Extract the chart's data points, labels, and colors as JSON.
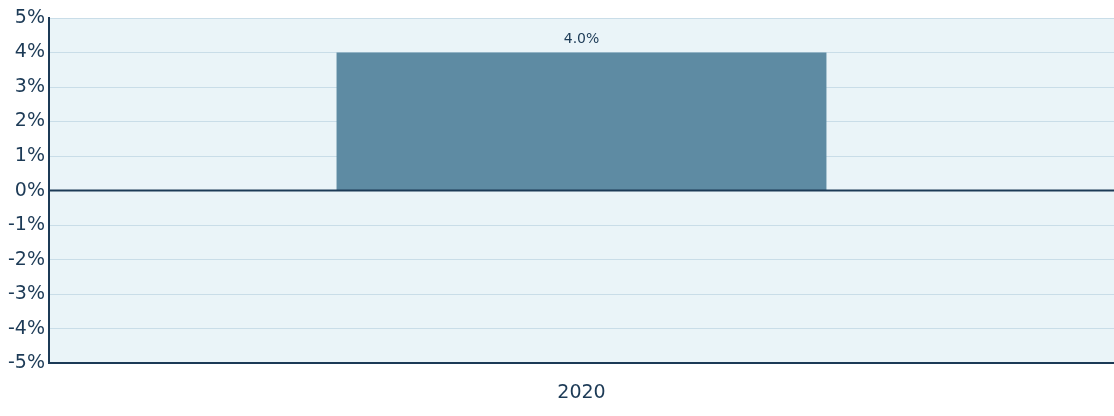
{
  "chart_data": {
    "type": "bar",
    "categories": [
      "2020"
    ],
    "series": [
      {
        "color": "#5e8ba3",
        "values": [
          4.0
        ],
        "value_labels": [
          "4.0%"
        ]
      }
    ],
    "ylim": [
      -5,
      5
    ],
    "yticks": [
      {
        "value": -5,
        "label": "-5%"
      },
      {
        "value": -4,
        "label": "-4%"
      },
      {
        "value": -3,
        "label": "-3%"
      },
      {
        "value": -2,
        "label": "-2%"
      },
      {
        "value": -1,
        "label": "-1%"
      },
      {
        "value": 0,
        "label": "0%"
      },
      {
        "value": 1,
        "label": "1%"
      },
      {
        "value": 2,
        "label": "2%"
      },
      {
        "value": 3,
        "label": "3%"
      },
      {
        "value": 4,
        "label": "4%"
      },
      {
        "value": 5,
        "label": "5%"
      }
    ],
    "ref_lines": [
      {
        "axis": "y",
        "value": 0,
        "color": "#1c3a56"
      }
    ],
    "grid": "y",
    "legend": false
  }
}
